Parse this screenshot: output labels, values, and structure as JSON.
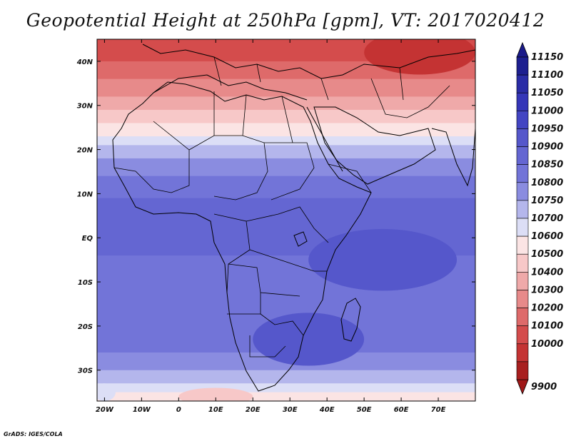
{
  "title": "Geopotential Height at 250hPa [gpm], VT: 2017020412",
  "credit": "GrADS: IGES/COLA",
  "lat_labels": [
    "40N",
    "30N",
    "20N",
    "10N",
    "EQ",
    "10S",
    "20S",
    "30S"
  ],
  "lat_values": [
    40,
    30,
    20,
    10,
    0,
    -10,
    -20,
    -30
  ],
  "lon_labels": [
    "20W",
    "10W",
    "0",
    "10E",
    "20E",
    "30E",
    "40E",
    "50E",
    "60E",
    "70E"
  ],
  "lon_values": [
    -20,
    -10,
    0,
    10,
    20,
    30,
    40,
    50,
    60,
    70
  ],
  "domain": {
    "lon_min": -22,
    "lon_max": 80,
    "lat_min": -37,
    "lat_max": 45
  },
  "colorbar": {
    "labels": [
      "11150",
      "11100",
      "11050",
      "11000",
      "10950",
      "10900",
      "10850",
      "10800",
      "10750",
      "10700",
      "10600",
      "10500",
      "10400",
      "10300",
      "10200",
      "10100",
      "10000",
      "9900"
    ],
    "colors": [
      "#1d1f90",
      "#2a2ca6",
      "#3536b8",
      "#4345c3",
      "#5557cb",
      "#6466d2",
      "#7274d8",
      "#8a8ce0",
      "#b4b6ec",
      "#dcdef6",
      "#fbe4e4",
      "#f7c8c8",
      "#efa9a9",
      "#e78a8a",
      "#de6a6a",
      "#d44c4c",
      "#c43333",
      "#a81f1f"
    ],
    "extend_top_color": "#1a1a8a",
    "extend_bottom_color": "#a01818"
  },
  "field_bands": [
    {
      "lat_from": 45,
      "lat_to": 40,
      "color": "#d44c4c"
    },
    {
      "lat_from": 40,
      "lat_to": 36,
      "color": "#de6a6a"
    },
    {
      "lat_from": 36,
      "lat_to": 32,
      "color": "#e78a8a"
    },
    {
      "lat_from": 32,
      "lat_to": 29,
      "color": "#efa9a9"
    },
    {
      "lat_from": 29,
      "lat_to": 26,
      "color": "#f7c8c8"
    },
    {
      "lat_from": 26,
      "lat_to": 23,
      "color": "#fbe4e4"
    },
    {
      "lat_from": 23,
      "lat_to": 21,
      "color": "#dcdef6"
    },
    {
      "lat_from": 21,
      "lat_to": 18,
      "color": "#b4b6ec"
    },
    {
      "lat_from": 18,
      "lat_to": 14,
      "color": "#8a8ce0"
    },
    {
      "lat_from": 14,
      "lat_to": 9,
      "color": "#7274d8"
    },
    {
      "lat_from": 9,
      "lat_to": -4,
      "color": "#6466d2"
    },
    {
      "lat_from": -4,
      "lat_to": -16,
      "color": "#7274d8"
    },
    {
      "lat_from": -16,
      "lat_to": -26,
      "color": "#7274d8"
    },
    {
      "lat_from": -26,
      "lat_to": -30,
      "color": "#8a8ce0"
    },
    {
      "lat_from": -30,
      "lat_to": -33,
      "color": "#b4b6ec"
    },
    {
      "lat_from": -33,
      "lat_to": -35,
      "color": "#dcdef6"
    },
    {
      "lat_from": -35,
      "lat_to": -37,
      "color": "#fbe4e4"
    }
  ],
  "field_blobs": [
    {
      "lon": 35,
      "lat": -22,
      "rlon": 8,
      "rlat": 4,
      "color": "#4345c3"
    },
    {
      "lon": 35,
      "lat": -23,
      "rlon": 15,
      "rlat": 6,
      "color": "#5557cb"
    },
    {
      "lon": 55,
      "lat": -5,
      "rlon": 20,
      "rlat": 7,
      "color": "#5557cb"
    },
    {
      "lon": 65,
      "lat": 42,
      "rlon": 15,
      "rlat": 5,
      "color": "#c43333"
    },
    {
      "lon": 10,
      "lat": -36,
      "rlon": 10,
      "rlat": 2,
      "color": "#f7c8c8"
    },
    {
      "lon": -20,
      "lat": -35,
      "rlon": 3,
      "rlat": 2,
      "color": "#dcdef6"
    }
  ]
}
